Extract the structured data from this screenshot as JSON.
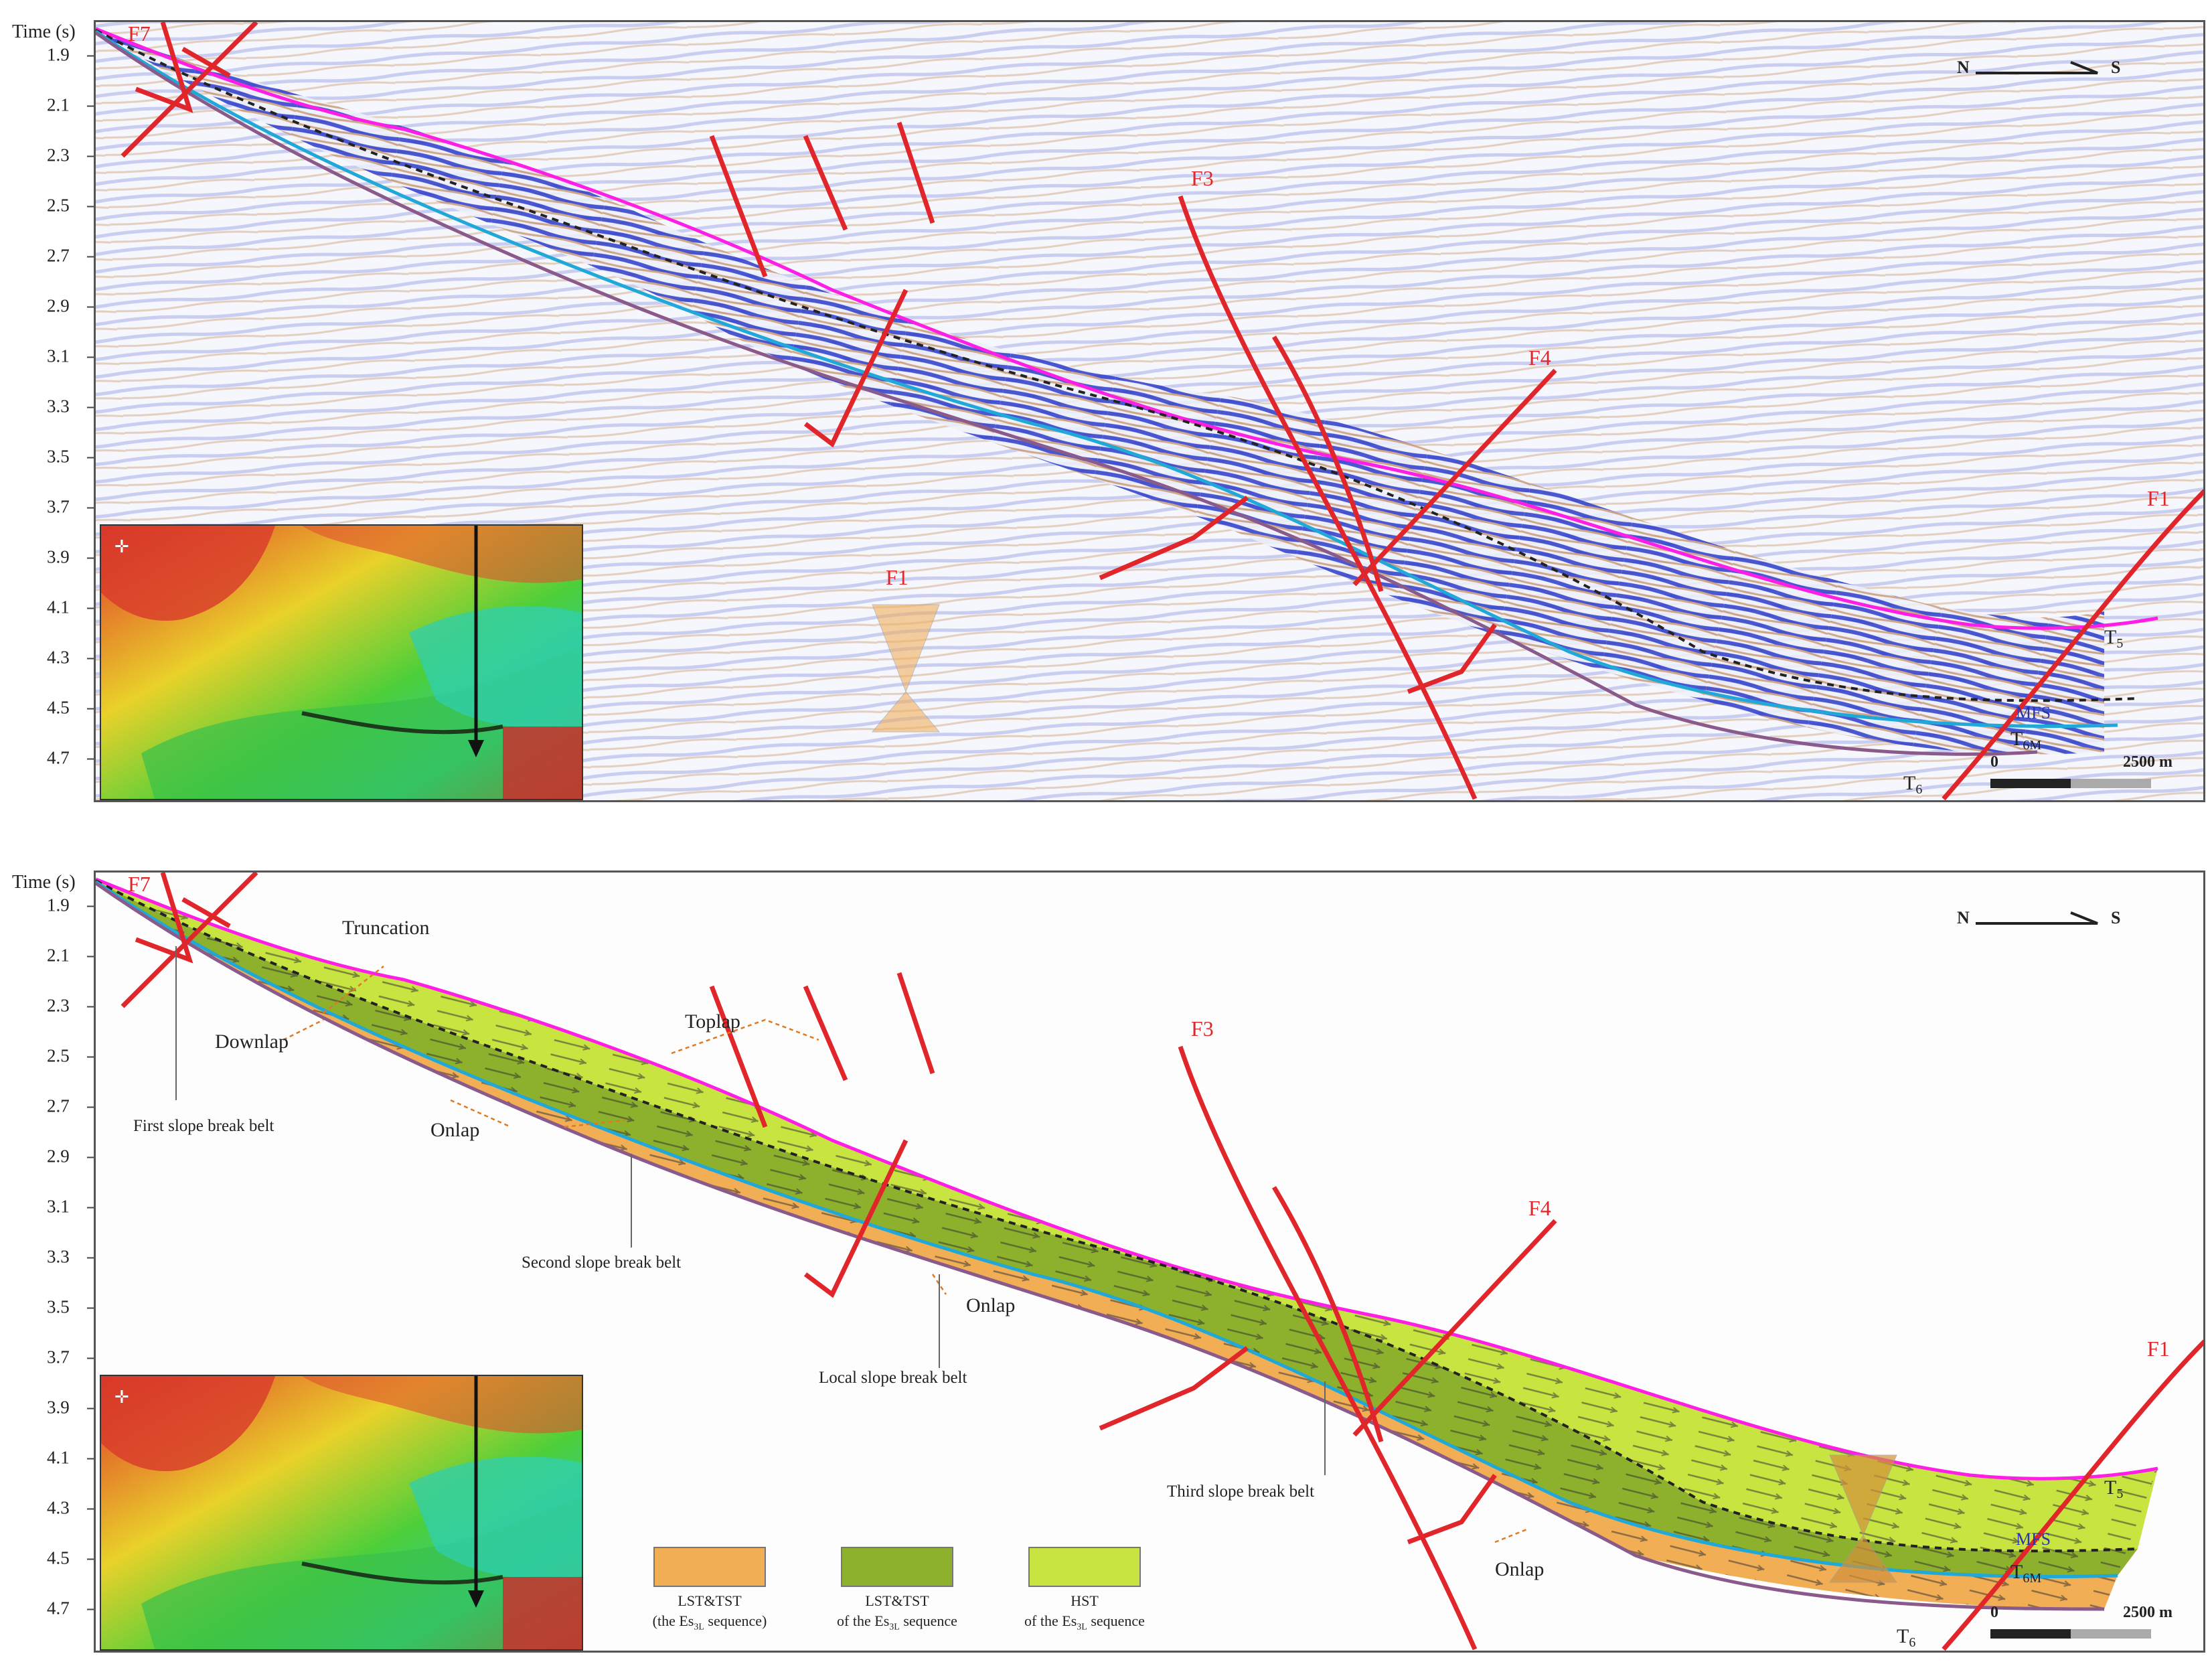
{
  "axis": {
    "title": "Time (s)",
    "ticks": [
      "1.9",
      "2.1",
      "2.3",
      "2.5",
      "2.7",
      "2.9",
      "3.1",
      "3.3",
      "3.5",
      "3.7",
      "3.9",
      "4.1",
      "4.3",
      "4.5",
      "4.7"
    ]
  },
  "compass": {
    "north": "N",
    "south": "S"
  },
  "scale_bar": {
    "start": "0",
    "end": "2500 m"
  },
  "faults": {
    "f7": "F7",
    "f3": "F3",
    "f4": "F4",
    "f1": "F1"
  },
  "horizons": {
    "t5": "T",
    "t5_sub": "5",
    "mfs": "MFS",
    "t6m": "T",
    "t6m_sub": "6M",
    "t6": "T",
    "t6_sub": "6"
  },
  "annotations": {
    "truncation": "Truncation",
    "downlap": "Downlap",
    "toplap": "Toplap",
    "onlap": "Onlap",
    "first_slope_break": "First slope break belt",
    "second_slope_break": "Second slope break belt",
    "local_slope_break": "Local slope break belt",
    "third_slope_break": "Third slope break belt"
  },
  "legend": [
    {
      "line1": "LST&TST",
      "line2": "(the Es",
      "sub": "3L",
      "line2_end": " sequence)",
      "color": "#f2ae55"
    },
    {
      "line1": "LST&TST",
      "line2": "of the Es",
      "sub": "3L",
      "line2_end": " sequence",
      "color": "#8db12c"
    },
    {
      "line1": "HST",
      "line2": "of the Es",
      "sub": "3L",
      "line2_end": " sequence",
      "color": "#c8e441"
    }
  ],
  "colors": {
    "fault": "#e0262a",
    "t5_horizon": "#ff1ee6",
    "t6m_horizon": "#1fa8d8",
    "t6_horizon": "#8a5a8a",
    "mfs_label": "#2a35a8"
  }
}
